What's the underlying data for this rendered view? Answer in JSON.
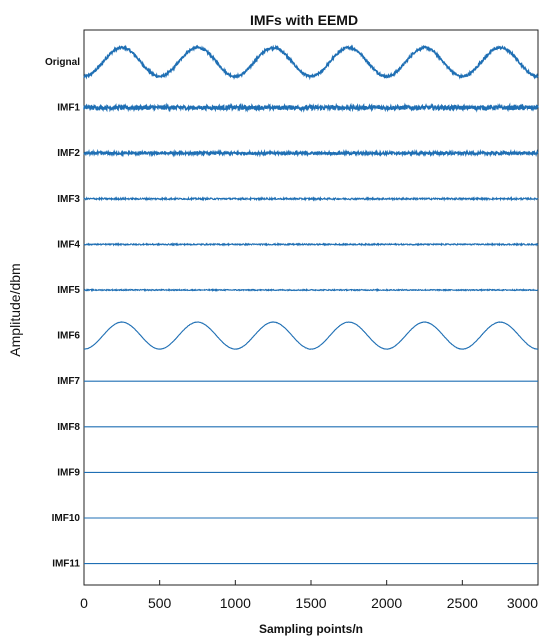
{
  "chart_data": {
    "type": "line",
    "title": "IMFs with EEMD",
    "xlabel": "Sampling points/n",
    "ylabel": "Amplitude/dbm",
    "xlim": [
      0,
      3000
    ],
    "x_ticks": [
      0,
      500,
      1000,
      1500,
      2000,
      2500,
      3000
    ],
    "grid": false,
    "line_color": "#1f6fb4",
    "series": [
      {
        "name": "Orignal",
        "period": 500,
        "amplitude": 0.8,
        "noise": 0.06,
        "center": 0
      },
      {
        "name": "IMF1",
        "period": 0,
        "amplitude": 0,
        "noise": 0.12,
        "center": 0
      },
      {
        "name": "IMF2",
        "period": 0,
        "amplitude": 0,
        "noise": 0.07,
        "center": 0
      },
      {
        "name": "IMF3",
        "period": 0,
        "amplitude": 0,
        "noise": 0.045,
        "center": 0
      },
      {
        "name": "IMF4",
        "period": 0,
        "amplitude": 0,
        "noise": 0.035,
        "center": 0
      },
      {
        "name": "IMF5",
        "period": 0,
        "amplitude": 0,
        "noise": 0.03,
        "center": 0
      },
      {
        "name": "IMF6",
        "period": 500,
        "amplitude": 0.75,
        "noise": 0.01,
        "center": 0
      },
      {
        "name": "IMF7",
        "period": 0,
        "amplitude": 0,
        "noise": 0,
        "center": 0
      },
      {
        "name": "IMF8",
        "period": 0,
        "amplitude": 0,
        "noise": 0,
        "center": 0
      },
      {
        "name": "IMF9",
        "period": 0,
        "amplitude": 0,
        "noise": 0,
        "center": 0
      },
      {
        "name": "IMF10",
        "period": 0,
        "amplitude": 0,
        "noise": 0,
        "center": 0
      },
      {
        "name": "IMF11",
        "period": 0,
        "amplitude": 0,
        "noise": 0,
        "center": 0
      }
    ]
  }
}
